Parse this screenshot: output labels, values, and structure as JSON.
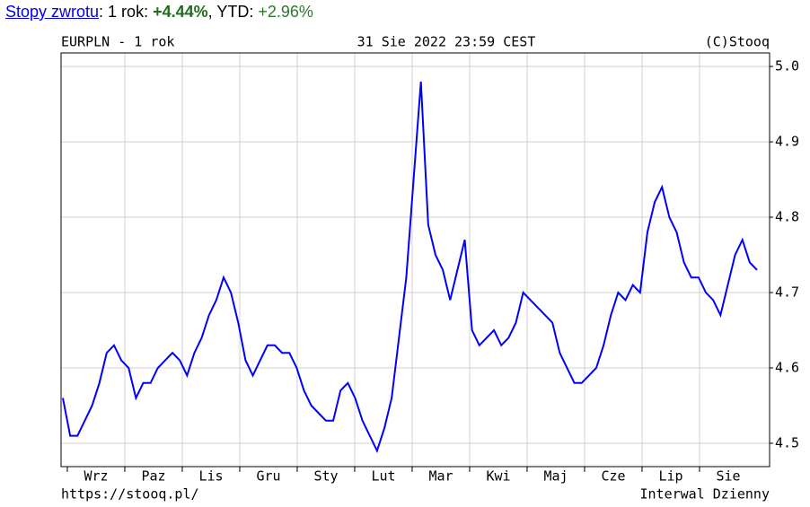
{
  "header": {
    "link": "Stopy zwrotu",
    "period_label": ": 1 rok: ",
    "period_return": "+4.44%",
    "ytd_label": ", YTD: ",
    "ytd_return": "+2.96%"
  },
  "chart_data": {
    "type": "line",
    "title": "EURPLN - 1 rok",
    "date": "31 Sie 2022 23:59 CEST",
    "source": "(C)Stooq",
    "url": "https://stooq.pl/",
    "interval": "Interwal Dzienny",
    "xticks": [
      "Wrz",
      "Paz",
      "Lis",
      "Gru",
      "Sty",
      "Lut",
      "Mar",
      "Kwi",
      "Maj",
      "Cze",
      "Lip",
      "Sie"
    ],
    "ylim": [
      4.469,
      5.018
    ],
    "yticks": [
      4.5,
      4.6,
      4.7,
      4.8,
      4.9,
      {
        "value": 5.0,
        "label": "5.0"
      }
    ],
    "grid": true,
    "series": [
      {
        "name": "EURPLN",
        "color": "#0000ff",
        "values": [
          4.56,
          4.51,
          4.51,
          4.53,
          4.55,
          4.58,
          4.62,
          4.63,
          4.61,
          4.6,
          4.56,
          4.58,
          4.58,
          4.6,
          4.61,
          4.62,
          4.61,
          4.59,
          4.62,
          4.64,
          4.67,
          4.69,
          4.72,
          4.7,
          4.66,
          4.61,
          4.59,
          4.61,
          4.63,
          4.63,
          4.62,
          4.62,
          4.6,
          4.57,
          4.55,
          4.54,
          4.53,
          4.53,
          4.57,
          4.58,
          4.56,
          4.53,
          4.51,
          4.49,
          4.52,
          4.56,
          4.64,
          4.72,
          4.85,
          4.98,
          4.79,
          4.75,
          4.73,
          4.69,
          4.73,
          4.77,
          4.65,
          4.63,
          4.64,
          4.65,
          4.63,
          4.64,
          4.66,
          4.7,
          4.69,
          4.68,
          4.67,
          4.66,
          4.62,
          4.6,
          4.58,
          4.58,
          4.59,
          4.6,
          4.63,
          4.67,
          4.7,
          4.69,
          4.71,
          4.7,
          4.78,
          4.82,
          4.84,
          4.8,
          4.78,
          4.74,
          4.72,
          4.72,
          4.7,
          4.69,
          4.67,
          4.71,
          4.75,
          4.77,
          4.74,
          4.73
        ]
      }
    ]
  }
}
